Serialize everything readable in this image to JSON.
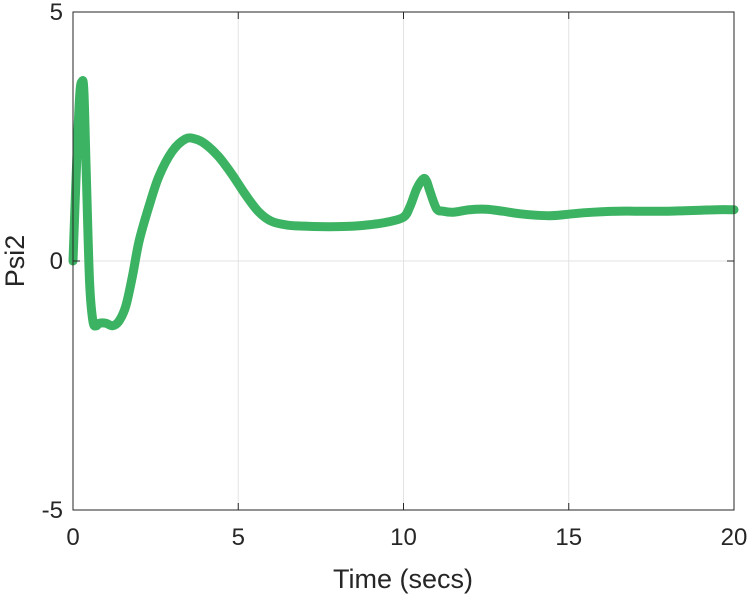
{
  "chart_data": {
    "type": "line",
    "title": "",
    "xlabel": "Time (secs)",
    "ylabel": "Psi2",
    "xlim": [
      0,
      20
    ],
    "ylim": [
      -5,
      5
    ],
    "xticks": [
      0,
      5,
      10,
      15,
      20
    ],
    "xtick_labels": [
      "0",
      "5",
      "10",
      "15",
      "20"
    ],
    "yticks": [
      -5,
      0,
      5
    ],
    "ytick_labels": [
      "-5",
      "0",
      "5"
    ],
    "grid": true,
    "legend": "none",
    "series": [
      {
        "color": "#3cb362",
        "x": [
          0,
          0.1,
          0.2,
          0.27,
          0.33,
          0.4,
          0.5,
          0.6,
          0.7,
          0.8,
          1.0,
          1.2,
          1.4,
          1.6,
          1.8,
          2.0,
          2.3,
          2.6,
          3.0,
          3.4,
          3.7,
          4.0,
          4.4,
          4.8,
          5.2,
          5.6,
          6.0,
          6.5,
          7.0,
          7.5,
          8.0,
          8.5,
          9.0,
          9.5,
          10.0,
          10.2,
          10.4,
          10.6,
          10.7,
          10.8,
          11.0,
          11.2,
          11.5,
          12.0,
          12.5,
          13.0,
          13.5,
          14.0,
          14.5,
          15.0,
          15.5,
          16.0,
          16.5,
          17.0,
          17.5,
          18.0,
          18.5,
          19.0,
          19.5,
          20.0
        ],
        "y": [
          0.0,
          1.8,
          3.3,
          3.6,
          3.4,
          1.8,
          -0.4,
          -1.2,
          -1.3,
          -1.25,
          -1.25,
          -1.3,
          -1.2,
          -0.9,
          -0.3,
          0.4,
          1.1,
          1.7,
          2.2,
          2.45,
          2.45,
          2.35,
          2.1,
          1.75,
          1.35,
          1.0,
          0.8,
          0.72,
          0.7,
          0.69,
          0.69,
          0.7,
          0.73,
          0.78,
          0.88,
          1.1,
          1.45,
          1.65,
          1.6,
          1.4,
          1.05,
          1.0,
          0.98,
          1.03,
          1.04,
          1.0,
          0.95,
          0.92,
          0.91,
          0.94,
          0.97,
          0.99,
          1.0,
          1.0,
          1.0,
          1.0,
          1.01,
          1.02,
          1.03,
          1.03
        ]
      }
    ]
  }
}
